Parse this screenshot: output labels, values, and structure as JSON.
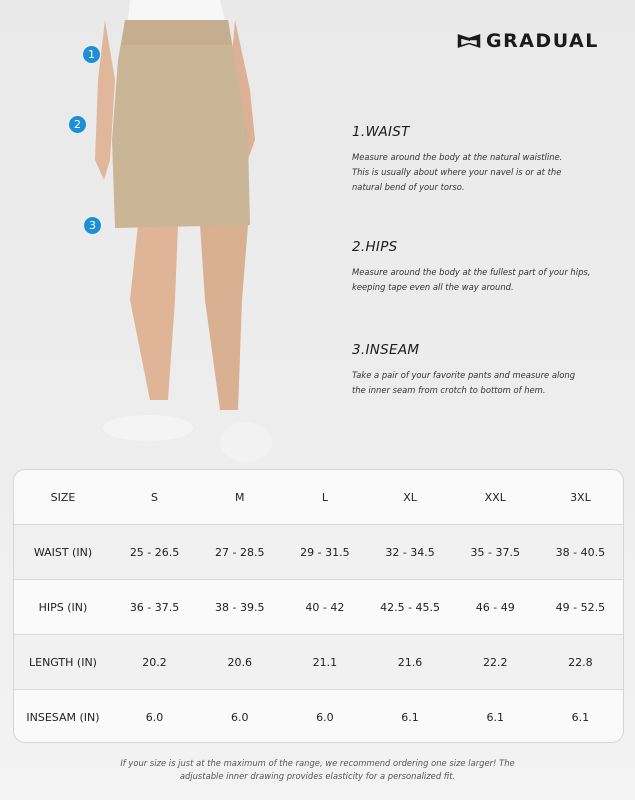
{
  "brand": {
    "name": "GRADUAL"
  },
  "markers": [
    "1",
    "2",
    "3"
  ],
  "sections": [
    {
      "title": "1.WAIST",
      "lines": [
        "Measure around the body at the natural waistline.",
        "This is usually about where your navel is or at the",
        "natural bend of your torso."
      ]
    },
    {
      "title": "2.HIPS",
      "lines": [
        "Measure around the body at the fullest part of your hips,",
        "keeping tape even all the way around."
      ]
    },
    {
      "title": "3.INSEAM",
      "lines": [
        "Take a pair of your favorite pants and measure along",
        "the inner seam from crotch to bottom of hem."
      ]
    }
  ],
  "size_table": {
    "header": [
      "SIZE",
      "S",
      "M",
      "L",
      "XL",
      "XXL",
      "3XL"
    ],
    "rows": [
      [
        "WAIST (IN)",
        "25 - 26.5",
        "27 - 28.5",
        "29 - 31.5",
        "32 - 34.5",
        "35 - 37.5",
        "38 - 40.5"
      ],
      [
        "HIPS (IN)",
        "36 - 37.5",
        "38 - 39.5",
        "40 - 42",
        "42.5 - 45.5",
        "46 - 49",
        "49 - 52.5"
      ],
      [
        "LENGTH (IN)",
        "20.2",
        "20.6",
        "21.1",
        "21.6",
        "22.2",
        "22.8"
      ],
      [
        "INSESAM (IN)",
        "6.0",
        "6.0",
        "6.0",
        "6.1",
        "6.1",
        "6.1"
      ]
    ]
  },
  "note": [
    "If your size is just at the maximum of the range, we recommend ordering one size larger! The",
    "adjustable inner drawing provides elasticity for a personalized fit."
  ],
  "colors": {
    "marker": "#1e8fd6",
    "skirt": "#cbb597"
  }
}
